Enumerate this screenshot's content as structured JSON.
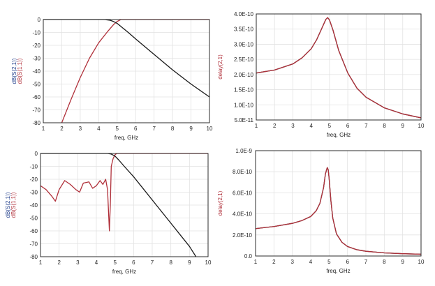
{
  "colors": {
    "black_trace": "#1a1a1a",
    "red_trace": "#b0303a",
    "axis_text": "#222222"
  },
  "chart_data": [
    {
      "id": "top-left",
      "type": "line",
      "xlabel": "freq, GHz",
      "ylabel_lines": [
        {
          "text": "dB(S(2,1))",
          "color": "#1f3d8a"
        },
        {
          "text": "dB(S(1,1))",
          "color": "#b0303a"
        }
      ],
      "xlim": [
        1,
        10
      ],
      "ylim": [
        -80,
        0
      ],
      "xticks": [
        1,
        2,
        3,
        4,
        5,
        6,
        7,
        8,
        9,
        10
      ],
      "yticks": [
        0,
        -10,
        -20,
        -30,
        -40,
        -50,
        -60,
        -70,
        -80
      ],
      "ytick_labels": [
        "0",
        "-10",
        "-20",
        "-30",
        "-40",
        "-50",
        "-60",
        "-70",
        "-80"
      ],
      "series": [
        {
          "color": "#b0303a",
          "x": [
            2.0,
            2.5,
            3.0,
            3.5,
            4.0,
            4.5,
            4.8,
            5.0,
            5.2,
            5.5,
            6.0,
            7.0,
            8.0,
            9.0,
            10.0
          ],
          "y": [
            -80,
            -62,
            -45,
            -30,
            -18,
            -9,
            -4,
            -1.5,
            0,
            0,
            0,
            0,
            0,
            0,
            0
          ]
        },
        {
          "color": "#1a1a1a",
          "x": [
            1.0,
            3.0,
            4.0,
            4.3,
            4.6,
            4.8,
            5.0,
            5.3,
            5.6,
            6.0,
            6.5,
            7.0,
            8.0,
            9.0,
            10.0
          ],
          "y": [
            0,
            0,
            0,
            0,
            -0.5,
            -1.5,
            -3,
            -6.5,
            -10,
            -15,
            -21,
            -27,
            -39,
            -50,
            -60
          ]
        }
      ]
    },
    {
      "id": "top-right",
      "type": "line",
      "xlabel": "freq, GHz",
      "ylabel_lines": [
        {
          "text": "delay(2,1)",
          "color": "#b0303a"
        }
      ],
      "xlim": [
        1,
        10
      ],
      "ylim": [
        5e-11,
        4e-10
      ],
      "xticks": [
        1,
        2,
        3,
        4,
        5,
        6,
        7,
        8,
        9,
        10
      ],
      "yticks": [
        4e-10,
        3.5e-10,
        3e-10,
        2.5e-10,
        2e-10,
        1.5e-10,
        1e-10,
        5e-11
      ],
      "ytick_labels": [
        "4.0E-10",
        "3.5E-10",
        "3.0E-10",
        "2.5E-10",
        "2.0E-10",
        "1.5E-10",
        "1.0E-10",
        "5.0E-11"
      ],
      "series": [
        {
          "color": "#1a1a1a",
          "x": [
            1.0,
            2.0,
            3.0,
            3.5,
            4.0,
            4.3,
            4.6,
            4.8,
            4.9,
            5.0,
            5.2,
            5.5,
            6.0,
            6.5,
            7.0,
            8.0,
            9.0,
            10.0
          ],
          "y": [
            2.05e-10,
            2.15e-10,
            2.35e-10,
            2.55e-10,
            2.85e-10,
            3.15e-10,
            3.55e-10,
            3.82e-10,
            3.88e-10,
            3.8e-10,
            3.45e-10,
            2.8e-10,
            2.05e-10,
            1.55e-10,
            1.25e-10,
            9e-11,
            7e-11,
            5.7e-11
          ]
        },
        {
          "color": "#b0303a",
          "x": [
            1.0,
            2.0,
            3.0,
            3.5,
            4.0,
            4.3,
            4.6,
            4.8,
            4.9,
            5.0,
            5.2,
            5.5,
            6.0,
            6.5,
            7.0,
            8.0,
            9.0,
            10.0
          ],
          "y": [
            2.05e-10,
            2.15e-10,
            2.35e-10,
            2.55e-10,
            2.85e-10,
            3.15e-10,
            3.55e-10,
            3.82e-10,
            3.88e-10,
            3.8e-10,
            3.45e-10,
            2.8e-10,
            2.05e-10,
            1.55e-10,
            1.25e-10,
            9e-11,
            7e-11,
            5.7e-11
          ]
        }
      ]
    },
    {
      "id": "bottom-left",
      "type": "line",
      "xlabel": "freq, GHz",
      "ylabel_lines": [
        {
          "text": "dB(S(2,1))",
          "color": "#1f3d8a"
        },
        {
          "text": "dB(S(1,1))",
          "color": "#b0303a"
        }
      ],
      "xlim": [
        1,
        10
      ],
      "ylim": [
        -80,
        0
      ],
      "xticks": [
        1,
        2,
        3,
        4,
        5,
        6,
        7,
        8,
        9,
        10
      ],
      "yticks": [
        0,
        -10,
        -20,
        -30,
        -40,
        -50,
        -60,
        -70,
        -80
      ],
      "ytick_labels": [
        "0",
        "-10",
        "-20",
        "-30",
        "-40",
        "-50",
        "-60",
        "-70",
        "-80"
      ],
      "series": [
        {
          "color": "#b0303a",
          "x": [
            1.0,
            1.3,
            1.6,
            1.8,
            2.0,
            2.3,
            2.6,
            2.9,
            3.1,
            3.3,
            3.6,
            3.8,
            4.0,
            4.2,
            4.35,
            4.5,
            4.6,
            4.7,
            4.75,
            4.8,
            4.9,
            5.0,
            5.1,
            5.3,
            5.6,
            6.0,
            7.0,
            8.0,
            10.0
          ],
          "y": [
            -25,
            -28,
            -33,
            -37,
            -28,
            -21,
            -24,
            -28,
            -30,
            -23,
            -22,
            -27,
            -25,
            -21,
            -24,
            -20,
            -28,
            -60,
            -40,
            -10,
            -4,
            -1,
            0,
            0,
            0,
            0,
            0,
            0,
            0
          ]
        },
        {
          "color": "#1a1a1a",
          "x": [
            1.0,
            4.0,
            4.6,
            4.8,
            5.0,
            5.2,
            5.5,
            6.0,
            6.5,
            7.0,
            7.5,
            8.0,
            8.5,
            9.0,
            9.35
          ],
          "y": [
            0,
            0,
            0,
            -0.5,
            -2,
            -5,
            -10,
            -18,
            -27,
            -36,
            -45,
            -54,
            -63,
            -72,
            -80
          ]
        }
      ]
    },
    {
      "id": "bottom-right",
      "type": "line",
      "xlabel": "freq, GHz",
      "ylabel_lines": [
        {
          "text": "delay(2,1)",
          "color": "#b0303a"
        }
      ],
      "xlim": [
        1,
        10
      ],
      "ylim": [
        0,
        1e-09
      ],
      "xticks": [
        1,
        2,
        3,
        4,
        5,
        6,
        7,
        8,
        9,
        10
      ],
      "yticks": [
        1e-09,
        8e-10,
        6e-10,
        4e-10,
        2e-10,
        0
      ],
      "ytick_labels": [
        "1.0E-9",
        "8.0E-10",
        "6.0E-10",
        "4.0E-10",
        "2.0E-10",
        "0.0"
      ],
      "series": [
        {
          "color": "#1a1a1a",
          "x": [
            1.0,
            2.0,
            3.0,
            3.5,
            4.0,
            4.3,
            4.5,
            4.7,
            4.8,
            4.9,
            4.95,
            5.0,
            5.1,
            5.2,
            5.4,
            5.7,
            6.0,
            6.5,
            7.0,
            8.0,
            9.0,
            10.0
          ],
          "y": [
            2.6e-10,
            2.8e-10,
            3.1e-10,
            3.35e-10,
            3.75e-10,
            4.3e-10,
            5e-10,
            6.5e-10,
            7.8e-10,
            8.4e-10,
            8.2e-10,
            7.4e-10,
            5.2e-10,
            3.6e-10,
            2.1e-10,
            1.3e-10,
            9e-11,
            6e-11,
            4.5e-11,
            3e-11,
            2.2e-11,
            1.7e-11
          ]
        },
        {
          "color": "#b0303a",
          "x": [
            1.0,
            2.0,
            3.0,
            3.5,
            4.0,
            4.3,
            4.5,
            4.7,
            4.8,
            4.9,
            4.95,
            5.0,
            5.1,
            5.2,
            5.4,
            5.7,
            6.0,
            6.5,
            7.0,
            8.0,
            9.0,
            10.0
          ],
          "y": [
            2.6e-10,
            2.8e-10,
            3.1e-10,
            3.35e-10,
            3.75e-10,
            4.3e-10,
            5e-10,
            6.5e-10,
            7.8e-10,
            8.4e-10,
            8.2e-10,
            7.4e-10,
            5.2e-10,
            3.6e-10,
            2.1e-10,
            1.3e-10,
            9e-11,
            6e-11,
            4.5e-11,
            3e-11,
            2.2e-11,
            1.7e-11
          ]
        }
      ]
    }
  ]
}
